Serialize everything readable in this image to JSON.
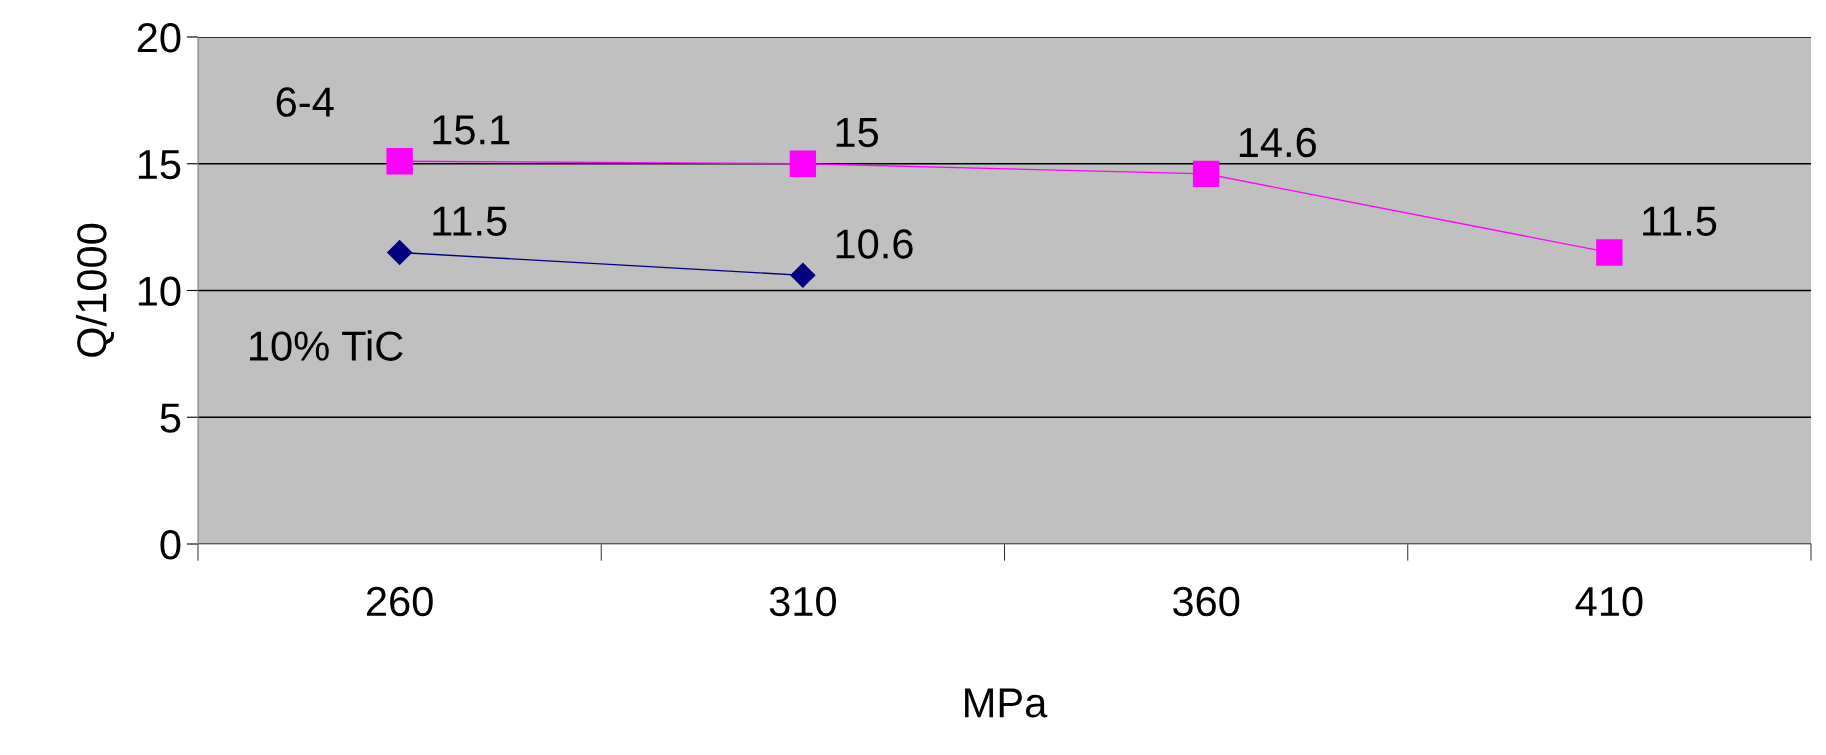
{
  "chart_data": {
    "type": "line",
    "xlabel": "MPa",
    "ylabel": "Q/1000",
    "categories": [
      "260",
      "310",
      "360",
      "410"
    ],
    "series": [
      {
        "name": "6-4",
        "color": "#ff00ff",
        "marker": "square",
        "values": [
          15.1,
          15,
          14.6,
          11.5
        ]
      },
      {
        "name": "10% TiC",
        "color": "#000080",
        "marker": "diamond",
        "values": [
          11.5,
          10.6,
          null,
          null
        ]
      }
    ],
    "ylim": [
      0,
      20
    ],
    "yticks": [
      0,
      5,
      10,
      15,
      20
    ],
    "grid": "y",
    "data_labels": true
  }
}
